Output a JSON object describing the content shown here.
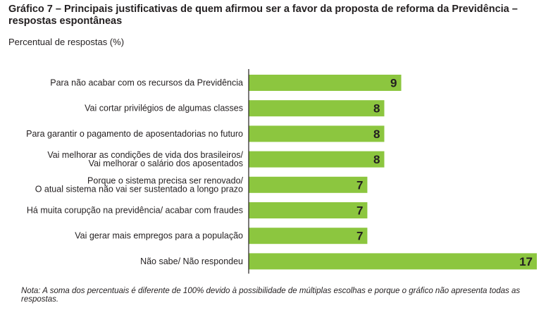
{
  "title": "Gráfico 7 – Principais justificativas de quem afirmou ser a favor da proposta de reforma da Previdência – respostas espontâneas",
  "subtitle": "Percentual de respostas (%)",
  "note": "Nota: A soma dos percentuais é diferente de 100% devido à possibilidade de múltiplas escolhas e porque o gráfico não apresenta todas as respostas.",
  "colors": {
    "bar": "#8cc63f",
    "axis": "#231f20"
  },
  "chart_data": {
    "type": "bar",
    "orientation": "horizontal",
    "categories": [
      [
        "Para não acabar com os recursos da Previdência"
      ],
      [
        "Vai cortar privilégios de algumas classes"
      ],
      [
        "Para garantir o pagamento de aposentadorias no futuro"
      ],
      [
        "Vai melhorar as condições de vida dos brasileiros/",
        "Vai melhorar o salário dos aposentados"
      ],
      [
        "Porque o sistema precisa ser renovado/",
        "O atual sistema não vai ser sustentado a longo prazo"
      ],
      [
        "Há muita corupção na previdência/ acabar com fraudes"
      ],
      [
        "Vai gerar mais empregos para a população"
      ],
      [
        "Não sabe/ Não respondeu"
      ]
    ],
    "values": [
      9,
      8,
      8,
      8,
      7,
      7,
      7,
      17
    ],
    "xlim": [
      0,
      17
    ],
    "grid": false,
    "legend": "none"
  }
}
